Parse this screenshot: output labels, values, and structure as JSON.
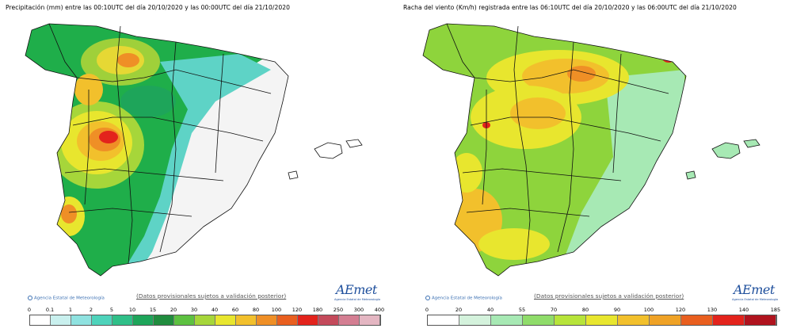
{
  "panels": [
    {
      "title": "Precipitación (mm) entre las 00:10UTC del día 20/10/2020 y las 00:00UTC del día 21/10/2020",
      "agency": "Agencia Estatal de Meteorología",
      "note": "(Datos provisionales sujetos a validación posterior)",
      "logo": "AEmet",
      "logo_sub": "Agencia Estatal de Meteorología",
      "legend": {
        "labels": [
          "0",
          "0.1",
          "1",
          "2",
          "5",
          "10",
          "15",
          "20",
          "30",
          "40",
          "60",
          "80",
          "100",
          "120",
          "180",
          "250",
          "300",
          "400"
        ],
        "colors": [
          "#ffffff",
          "#c9f0ee",
          "#8fe2e0",
          "#4ed3bb",
          "#2fbf88",
          "#1ea55a",
          "#208c3e",
          "#5dc141",
          "#a6d63a",
          "#e8e62e",
          "#f2c02c",
          "#ef8f26",
          "#e95f1f",
          "#e3231c",
          "#c44a5b",
          "#d47e92",
          "#e4b6c2"
        ]
      }
    },
    {
      "title": "Racha del viento (Km/h) registrada entre las 06:10UTC del día 20/10/2020 y las 06:00UTC del día 21/10/2020",
      "agency": "Agencia Estatal de Meteorología",
      "note": "(Datos provisionales sujetos a validación posterior)",
      "logo": "AEmet",
      "logo_sub": "Agencia Estatal de Meteorología",
      "legend": {
        "labels": [
          "0",
          "20",
          "40",
          "55",
          "70",
          "80",
          "90",
          "100",
          "120",
          "130",
          "140",
          "185"
        ],
        "colors": [
          "#ffffff",
          "#d4f2dc",
          "#a7e9b4",
          "#8fdc6a",
          "#b7e43a",
          "#e8e62e",
          "#f2c02c",
          "#efa226",
          "#e95f1f",
          "#e3231c",
          "#b0131e"
        ]
      }
    }
  ],
  "colors": {
    "border": "#111111",
    "left_map_base": "#1fae4a",
    "right_map_base": "#8ed43c"
  }
}
